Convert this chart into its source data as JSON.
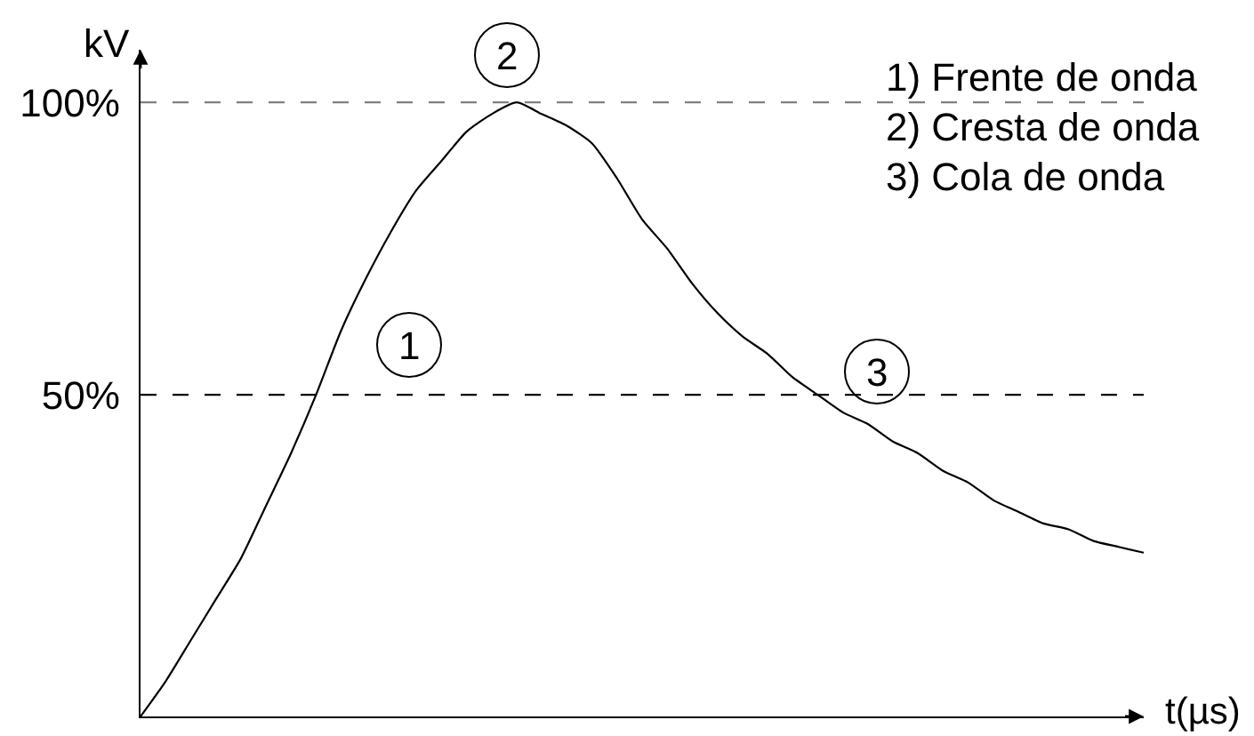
{
  "chart_data": {
    "type": "line",
    "ylabel": "kV",
    "categories": [
      null,
      null,
      null,
      null,
      null,
      null,
      null,
      null,
      null,
      null,
      null,
      null,
      null,
      null,
      null,
      null,
      null,
      null,
      null,
      null,
      null,
      null,
      null,
      null,
      null,
      null,
      null,
      null,
      null,
      null,
      null,
      null,
      null,
      null,
      null,
      null,
      null,
      null,
      null,
      null,
      null
    ],
    "values": [
      -5,
      1,
      8,
      15,
      22,
      31,
      40,
      50,
      61,
      70,
      78,
      85,
      90,
      95,
      98,
      100,
      98,
      96,
      93,
      87,
      80,
      75,
      69,
      64,
      60,
      57,
      53,
      50,
      47,
      45,
      42,
      40,
      37,
      35,
      32,
      30,
      28,
      27,
      25,
      24,
      23
    ],
    "color": "#000000",
    "ylim": [
      -5,
      109
    ],
    "yticks": [
      {
        "value": 50,
        "label": "50%"
      },
      {
        "value": 100,
        "label": "100%"
      }
    ],
    "tick_labels": "y",
    "ref_lines": [
      {
        "axis": "y",
        "value": 100,
        "color": "#808080",
        "line_style": "dashed"
      },
      {
        "axis": "y",
        "value": 50,
        "color": "#000000",
        "line_style": "dashed"
      }
    ],
    "annotations": [
      "1",
      "2",
      "3",
      "1) Frente de onda",
      "2) Cresta de onda",
      "3) Cola de onda",
      "t(µs)"
    ]
  }
}
